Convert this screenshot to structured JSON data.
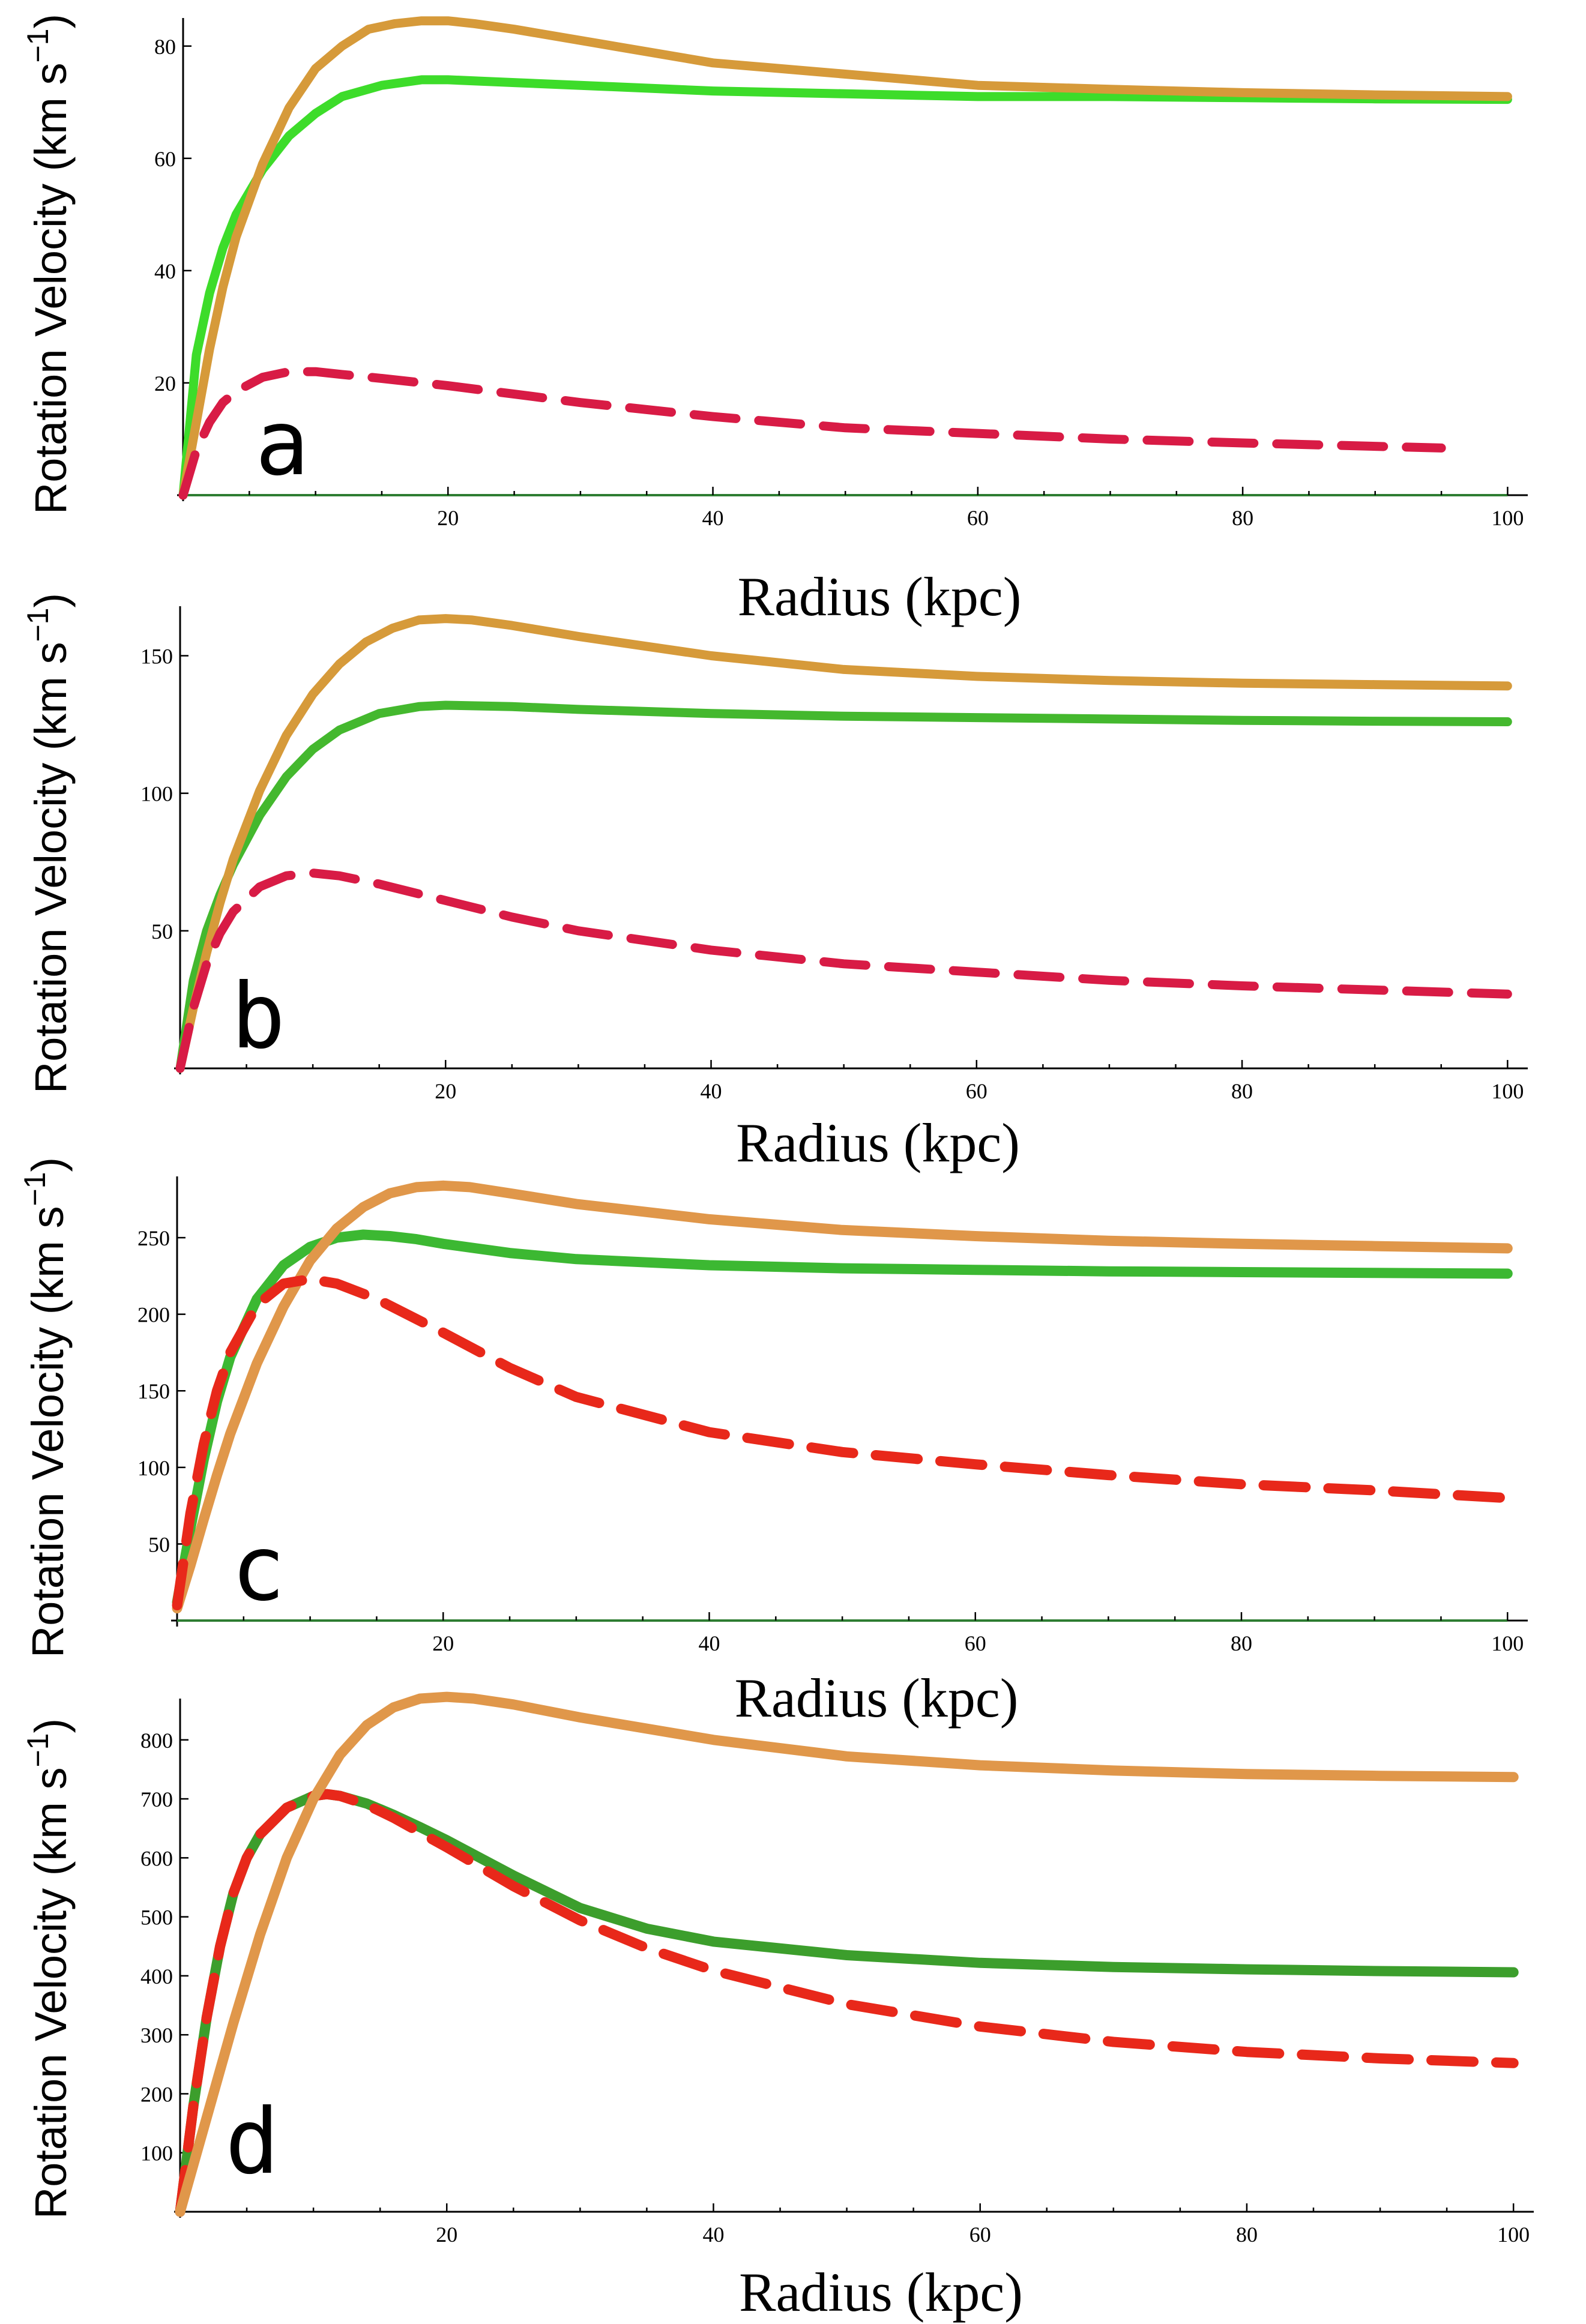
{
  "figure": {
    "xlabel": "Radius (kpc)",
    "ylabel_main": "Rotation Velocity (km s",
    "ylabel_exp": "−1",
    "ylabel_close": ")"
  },
  "chart_data": [
    {
      "type": "line",
      "panel_label": "a",
      "xlabel": "Radius (kpc)",
      "ylabel": "Rotation Velocity (km s^-1)",
      "xlim": [
        0,
        100
      ],
      "ylim": [
        0,
        85
      ],
      "x_ticks": [
        20,
        40,
        60,
        80,
        100
      ],
      "y_ticks": [
        20,
        40,
        60,
        80
      ],
      "show_zero_line": true,
      "grid": false,
      "legend": "none",
      "series": [
        {
          "color": "#3ddc2a",
          "style": "solid",
          "x": [
            0,
            1,
            2,
            3,
            4,
            6,
            8,
            10,
            12,
            15,
            18,
            20,
            25,
            30,
            40,
            50,
            60,
            70,
            80,
            90,
            100
          ],
          "y": [
            0,
            25,
            36,
            44,
            50,
            58,
            64,
            68,
            71,
            73,
            74,
            74,
            73.5,
            73,
            72,
            71.5,
            71,
            71,
            70.8,
            70.6,
            70.5
          ]
        },
        {
          "color": "#d69a3a",
          "style": "solid",
          "x": [
            0,
            1,
            2,
            3,
            4,
            6,
            8,
            10,
            12,
            14,
            16,
            18,
            20,
            22,
            25,
            30,
            40,
            50,
            60,
            70,
            80,
            90,
            100
          ],
          "y": [
            0,
            13,
            26,
            37,
            46,
            59,
            69,
            76,
            80,
            83,
            84,
            84.5,
            84.5,
            84,
            83,
            81,
            77,
            75,
            73,
            72.3,
            71.7,
            71.3,
            71
          ]
        },
        {
          "color": "#d81b45",
          "style": "dashed",
          "x": [
            0,
            1,
            2,
            3,
            4,
            6,
            8,
            10,
            12,
            15,
            20,
            25,
            30,
            40,
            50,
            60,
            70,
            80,
            90,
            95
          ],
          "y": [
            0,
            8,
            13,
            16.5,
            18.5,
            21,
            22,
            22,
            21.5,
            20.8,
            19.5,
            18,
            16.5,
            14,
            12,
            11,
            10,
            9.3,
            8.7,
            8.4
          ]
        }
      ]
    },
    {
      "type": "line",
      "panel_label": "b",
      "xlabel": "Radius (kpc)",
      "ylabel": "Rotation Velocity (km s^-1)",
      "xlim": [
        0,
        100
      ],
      "ylim": [
        0,
        168
      ],
      "x_ticks": [
        20,
        40,
        60,
        80,
        100
      ],
      "y_ticks": [
        50,
        100,
        150
      ],
      "show_zero_line": false,
      "grid": false,
      "legend": "none",
      "series": [
        {
          "color": "#44b82e",
          "style": "solid",
          "x": [
            0,
            1,
            2,
            3,
            4,
            6,
            8,
            10,
            12,
            15,
            18,
            20,
            25,
            30,
            40,
            50,
            60,
            70,
            80,
            90,
            100
          ],
          "y": [
            0,
            32,
            50,
            63,
            74,
            92,
            106,
            116,
            123,
            129,
            131.5,
            132,
            131.5,
            130.5,
            129,
            128,
            127.5,
            127,
            126.5,
            126.2,
            126
          ]
        },
        {
          "color": "#d69a3a",
          "style": "solid",
          "x": [
            0,
            1,
            2,
            3,
            4,
            6,
            8,
            10,
            12,
            14,
            16,
            18,
            20,
            22,
            25,
            30,
            40,
            50,
            60,
            70,
            80,
            90,
            100
          ],
          "y": [
            0,
            22,
            42,
            60,
            76,
            101,
            121,
            136,
            147,
            155,
            160,
            163,
            163.5,
            163,
            161,
            157,
            150,
            145,
            142.5,
            141,
            140,
            139.5,
            139
          ]
        },
        {
          "color": "#d81b45",
          "style": "dashed",
          "x": [
            0,
            1,
            2,
            3,
            4,
            6,
            8,
            10,
            12,
            15,
            20,
            25,
            30,
            40,
            50,
            60,
            70,
            80,
            90,
            100
          ],
          "y": [
            0,
            22,
            38,
            49,
            57,
            66,
            70,
            71,
            70,
            67,
            61,
            55,
            50,
            43,
            38,
            35,
            32,
            30,
            28.5,
            27
          ]
        }
      ]
    },
    {
      "type": "line",
      "panel_label": "c",
      "xlabel": "Radius (kpc)",
      "ylabel": "Rotation Velocity (km s^-1)",
      "xlim": [
        0,
        100
      ],
      "ylim": [
        0,
        290
      ],
      "x_ticks": [
        20,
        40,
        60,
        80,
        100
      ],
      "y_ticks": [
        50,
        100,
        150,
        200,
        250
      ],
      "show_zero_line": true,
      "grid": false,
      "legend": "none",
      "series": [
        {
          "color": "#3cb832",
          "style": "solid",
          "x": [
            0,
            1,
            2,
            3,
            4,
            6,
            8,
            10,
            12,
            14,
            16,
            18,
            20,
            25,
            30,
            40,
            50,
            60,
            70,
            80,
            90,
            100
          ],
          "y": [
            12,
            60,
            105,
            143,
            172,
            210,
            232,
            244,
            250,
            252,
            251,
            249,
            246,
            240,
            236,
            232,
            230,
            229,
            228,
            227.5,
            227,
            226.5
          ]
        },
        {
          "color": "#e0974a",
          "style": "solid",
          "x": [
            0,
            1,
            2,
            3,
            4,
            6,
            8,
            10,
            12,
            14,
            16,
            18,
            20,
            22,
            25,
            30,
            40,
            50,
            60,
            70,
            80,
            90,
            100
          ],
          "y": [
            8,
            36,
            66,
            95,
            122,
            168,
            205,
            235,
            256,
            270,
            279,
            283,
            284,
            283,
            279,
            272,
            262,
            255,
            251,
            248,
            246,
            244.5,
            243
          ]
        },
        {
          "color": "#e8281a",
          "style": "dashed",
          "x": [
            0,
            1,
            2,
            3,
            4,
            6,
            8,
            10,
            12,
            15,
            20,
            25,
            30,
            40,
            50,
            60,
            70,
            80,
            90,
            100
          ],
          "y": [
            10,
            70,
            115,
            150,
            175,
            206,
            220,
            223,
            220,
            210,
            188,
            165,
            146,
            123,
            110,
            102,
            95,
            89,
            85,
            80
          ]
        }
      ]
    },
    {
      "type": "line",
      "panel_label": "d",
      "xlabel": "Radius (kpc)",
      "ylabel": "Rotation Velocity (km s^-1)",
      "xlim": [
        0,
        100
      ],
      "ylim": [
        0,
        870
      ],
      "x_ticks": [
        20,
        40,
        60,
        80,
        100
      ],
      "y_ticks": [
        100,
        200,
        300,
        400,
        500,
        600,
        700,
        800
      ],
      "show_zero_line": false,
      "grid": false,
      "legend": "none",
      "series": [
        {
          "color": "#3c9e2c",
          "style": "solid",
          "x": [
            0,
            1,
            2,
            3,
            4,
            5,
            6,
            8,
            10,
            11,
            12,
            14,
            16,
            18,
            20,
            25,
            30,
            35,
            40,
            50,
            60,
            70,
            80,
            90,
            100
          ],
          "y": [
            0,
            180,
            330,
            450,
            540,
            600,
            640,
            685,
            705,
            708,
            705,
            692,
            673,
            652,
            630,
            570,
            515,
            480,
            458,
            435,
            422,
            415,
            411,
            408,
            406
          ]
        },
        {
          "color": "#e8281a",
          "style": "dashed",
          "x": [
            0,
            1,
            2,
            3,
            4,
            5,
            6,
            8,
            10,
            11,
            12,
            14,
            16,
            18,
            20,
            25,
            30,
            35,
            40,
            50,
            60,
            70,
            80,
            90,
            100
          ],
          "y": [
            0,
            180,
            330,
            450,
            540,
            600,
            640,
            685,
            705,
            708,
            705,
            690,
            668,
            643,
            618,
            552,
            494,
            447,
            409,
            352,
            314,
            288,
            271,
            260,
            252
          ]
        },
        {
          "color": "#e0974a",
          "style": "solid",
          "x": [
            0,
            1,
            2,
            3,
            4,
            6,
            8,
            10,
            12,
            14,
            16,
            18,
            20,
            22,
            25,
            30,
            40,
            50,
            60,
            70,
            80,
            90,
            100
          ],
          "y": [
            0,
            80,
            160,
            240,
            320,
            470,
            600,
            700,
            775,
            825,
            855,
            870,
            873,
            870,
            860,
            838,
            800,
            772,
            757,
            748,
            742,
            739,
            737
          ]
        }
      ]
    }
  ]
}
